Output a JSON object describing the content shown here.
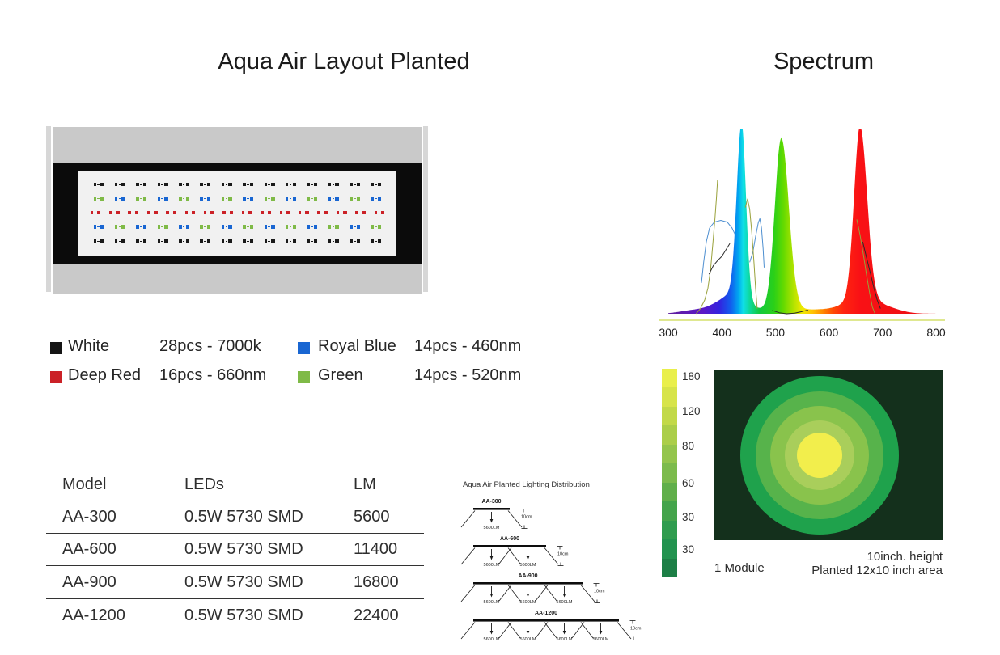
{
  "titles": {
    "left": "Aqua Air Layout Planted",
    "right": "Spectrum"
  },
  "colors": {
    "white": "#1a1a1a",
    "royal_blue": "#1966d2",
    "deep_red": "#cb2127",
    "green": "#7fba47",
    "fixture_body": "#c9c9c9",
    "fixture_frame": "#0b0b0b",
    "fixture_panel": "#f1f1f1",
    "axis_line": "#ccd94e"
  },
  "fixture": {
    "led_rows": [
      {
        "y": 16,
        "count": 14,
        "colors": [
          "white"
        ]
      },
      {
        "y": 33.5,
        "count": 14,
        "colors": [
          "green",
          "royal_blue"
        ]
      },
      {
        "y": 51,
        "count": 16,
        "colors": [
          "deep_red"
        ]
      },
      {
        "y": 68.5,
        "count": 14,
        "colors": [
          "royal_blue",
          "green"
        ]
      },
      {
        "y": 86,
        "count": 14,
        "colors": [
          "white"
        ]
      }
    ]
  },
  "legend": {
    "items": [
      {
        "color": "#151515",
        "label": "White",
        "value": "28pcs - 7000k"
      },
      {
        "color": "#1966d2",
        "label": "Royal Blue",
        "value": "14pcs - 460nm"
      },
      {
        "color": "#cb2127",
        "label": "Deep Red",
        "value": "16pcs - 660nm"
      },
      {
        "color": "#7fba47",
        "label": "Green",
        "value": "14pcs - 520nm"
      }
    ]
  },
  "table": {
    "headers": [
      "Model",
      "LEDs",
      "LM"
    ],
    "rows": [
      [
        "AA-300",
        "0.5W 5730 SMD",
        "5600"
      ],
      [
        "AA-600",
        "0.5W 5730 SMD",
        "11400"
      ],
      [
        "AA-900",
        "0.5W 5730 SMD",
        "16800"
      ],
      [
        "AA-1200",
        "0.5W 5730 SMD",
        "22400"
      ]
    ]
  },
  "distribution_diagrams": {
    "title": "Aqua Air Planted Lighting Distribution",
    "lumen_label": "5600LM",
    "height_label": "10cm",
    "items": [
      {
        "label": "AA-300",
        "modules": 1
      },
      {
        "label": "AA-600",
        "modules": 2
      },
      {
        "label": "AA-900",
        "modules": 3
      },
      {
        "label": "AA-1200",
        "modules": 4
      }
    ]
  },
  "distribution_map": {
    "captions": {
      "module": "1 Module",
      "height": "10inch. height",
      "area": "Planted 12x10 inch area"
    }
  },
  "chart_data": [
    {
      "type": "area",
      "title": "Spectrum",
      "x_ticks": [
        "300",
        "400",
        "500",
        "600",
        "700",
        "800"
      ],
      "x_range": [
        300,
        800
      ],
      "peaks_nm": [
        437,
        511,
        658
      ],
      "axis_color": "#ccd94e",
      "components": [
        {
          "c": 437,
          "a": 1.0,
          "sl": 9,
          "sr": 8
        },
        {
          "c": 428,
          "a": 0.1,
          "sl": 30,
          "sr": 18
        },
        {
          "c": 511,
          "a": 1.0,
          "sl": 12,
          "sr": 14
        },
        {
          "c": 658,
          "a": 1.0,
          "sl": 11,
          "sr": 13
        },
        {
          "c": 660,
          "a": 0.07,
          "sl": 28,
          "sr": 34
        }
      ],
      "pedestal": {
        "a": 0.025,
        "x0": 322,
        "x1": 738,
        "w": 13
      },
      "gradient": [
        [
          0,
          "#5f1f9c"
        ],
        [
          0.13,
          "#5b18c6"
        ],
        [
          0.19,
          "#3322df"
        ],
        [
          0.235,
          "#1061ee"
        ],
        [
          0.262,
          "#00a8f0"
        ],
        [
          0.28,
          "#10e0e6"
        ],
        [
          0.305,
          "#0ed898"
        ],
        [
          0.34,
          "#12c93e"
        ],
        [
          0.395,
          "#2bd018"
        ],
        [
          0.43,
          "#63da00"
        ],
        [
          0.468,
          "#b2e300"
        ],
        [
          0.5,
          "#eeea02"
        ],
        [
          0.54,
          "#ffc200"
        ],
        [
          0.578,
          "#ff8700"
        ],
        [
          0.615,
          "#ff4b04"
        ],
        [
          0.655,
          "#ff2410"
        ],
        [
          0.715,
          "#f91115"
        ],
        [
          1,
          "#ea1013"
        ]
      ],
      "overlay_lines": [
        {
          "color": "#4e8fd0",
          "points": [
            [
              362,
              0.18
            ],
            [
              366,
              0.3
            ],
            [
              371,
              0.42
            ],
            [
              377,
              0.5
            ],
            [
              386,
              0.535
            ],
            [
              398,
              0.545
            ],
            [
              410,
              0.535
            ],
            [
              419,
              0.5
            ],
            [
              425,
              0.46
            ]
          ]
        },
        {
          "color": "#4e8fd0",
          "points": [
            [
              452,
              0.3
            ],
            [
              458,
              0.36
            ],
            [
              463,
              0.45
            ],
            [
              468,
              0.53
            ],
            [
              471,
              0.555
            ],
            [
              474,
              0.5
            ],
            [
              477,
              0.38
            ],
            [
              479,
              0.27
            ]
          ]
        },
        {
          "color": "#99a13b",
          "points": [
            [
              352,
              0.0
            ],
            [
              360,
              0.03
            ],
            [
              368,
              0.08
            ],
            [
              374,
              0.15
            ],
            [
              379,
              0.26
            ],
            [
              383,
              0.4
            ],
            [
              387,
              0.55
            ],
            [
              390,
              0.68
            ],
            [
              392,
              0.78
            ]
          ]
        },
        {
          "color": "#99a13b",
          "points": [
            [
              444,
              0.62
            ],
            [
              448,
              0.67
            ],
            [
              452,
              0.61
            ],
            [
              456,
              0.47
            ],
            [
              460,
              0.3
            ],
            [
              463,
              0.15
            ],
            [
              466,
              0.03
            ]
          ]
        },
        {
          "color": "#99a13b",
          "points": [
            [
              652,
              0.55
            ],
            [
              658,
              0.46
            ],
            [
              664,
              0.35
            ],
            [
              670,
              0.23
            ],
            [
              676,
              0.12
            ],
            [
              681,
              0.04
            ],
            [
              686,
              0.0
            ]
          ]
        },
        {
          "color": "#2b2b2b",
          "points": [
            [
              376,
              0.23
            ],
            [
              384,
              0.28
            ],
            [
              392,
              0.31
            ],
            [
              400,
              0.335
            ],
            [
              408,
              0.375
            ],
            [
              415,
              0.41
            ]
          ]
        },
        {
          "color": "#2b2b2b",
          "points": [
            [
              494,
              0.02
            ],
            [
              507,
              0.006
            ],
            [
              521,
              0.0
            ],
            [
              536,
              0.004
            ],
            [
              550,
              0.013
            ],
            [
              561,
              0.022
            ]
          ]
        },
        {
          "color": "#2b2b2b",
          "points": [
            [
              663,
              0.42
            ],
            [
              670,
              0.33
            ],
            [
              677,
              0.24
            ],
            [
              684,
              0.15
            ],
            [
              690,
              0.08
            ],
            [
              696,
              0.03
            ]
          ]
        }
      ]
    },
    {
      "type": "heatmap",
      "background": "#14301c",
      "center": [
        130,
        105
      ],
      "rings": [
        {
          "radius_px": 98,
          "color": "#1fa24c"
        },
        {
          "radius_px": 79,
          "color": "#57b34b"
        },
        {
          "radius_px": 61,
          "color": "#89c34c"
        },
        {
          "radius_px": 43,
          "color": "#a9ce5b"
        },
        {
          "radius_px": 28,
          "color": "#f2ee4c"
        }
      ],
      "colorbar": {
        "steps": [
          "#e9ef4b",
          "#d7e449",
          "#c2d948",
          "#abce49",
          "#94c54c",
          "#7cbb4c",
          "#60af4a",
          "#44a44b",
          "#2f9c4e",
          "#22934f",
          "#1d7f46"
        ],
        "labels": [
          "180",
          "120",
          "80",
          "60",
          "30",
          "30"
        ]
      }
    }
  ]
}
